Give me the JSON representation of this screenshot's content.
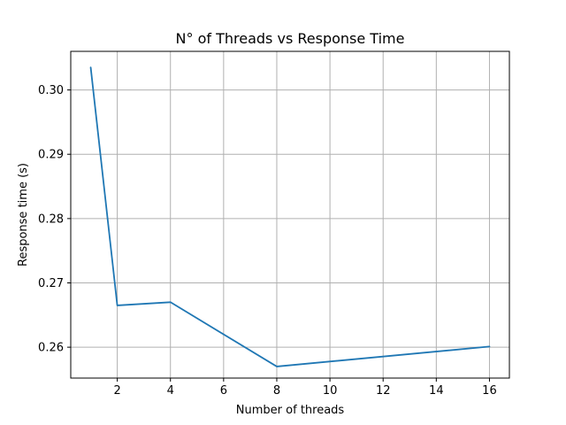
{
  "chart_data": {
    "type": "line",
    "title": "N° of Threads vs Response Time",
    "xlabel": "Number of threads",
    "ylabel": "Response time (s)",
    "x": [
      1,
      2,
      4,
      8,
      16
    ],
    "series": [
      {
        "values": [
          0.3035,
          0.2665,
          0.267,
          0.257,
          0.2601
        ],
        "color": "#1f77b4"
      }
    ],
    "xlim": [
      0.25,
      16.75
    ],
    "ylim": [
      0.2552,
      0.306
    ],
    "xticks": [
      2,
      4,
      6,
      8,
      10,
      12,
      14,
      16
    ],
    "xtick_labels": [
      "2",
      "4",
      "6",
      "8",
      "10",
      "12",
      "14",
      "16"
    ],
    "yticks": [
      0.26,
      0.27,
      0.28,
      0.29,
      0.3
    ],
    "ytick_labels": [
      "0.26",
      "0.27",
      "0.28",
      "0.29",
      "0.30"
    ],
    "grid": true,
    "grid_color": "#b0b0b0",
    "axis_color": "#000000"
  }
}
